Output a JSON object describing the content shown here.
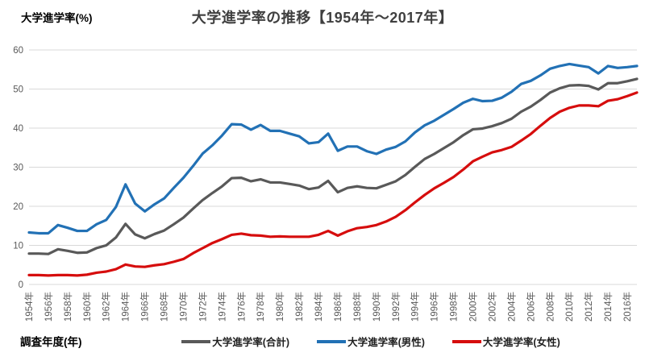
{
  "header": {
    "title": "大学進学率の推移【1954年～2017年】",
    "y_axis_title": "大学進学率(%)",
    "x_axis_title": "調査年度(年)"
  },
  "axes": {
    "y_tick_labels": [
      "0",
      "10",
      "20",
      "30",
      "40",
      "50",
      "60"
    ],
    "x_tick_labels": [
      "1954年",
      "1956年",
      "1958年",
      "1960年",
      "1962年",
      "1964年",
      "1966年",
      "1968年",
      "1970年",
      "1972年",
      "1974年",
      "1976年",
      "1978年",
      "1980年",
      "1982年",
      "1984年",
      "1986年",
      "1988年",
      "1990年",
      "1992年",
      "1994年",
      "1996年",
      "1998年",
      "2000年",
      "2002年",
      "2004年",
      "2006年",
      "2008年",
      "2010年",
      "2012年",
      "2014年",
      "2016年"
    ]
  },
  "colors": {
    "title": "#3f3f3f",
    "gridline": "#d9d9d9",
    "tick_text": "#595959",
    "series_total": "#595959",
    "series_male": "#2271b5",
    "series_female": "#d60d0d"
  },
  "chart_data": {
    "type": "line",
    "title": "大学進学率の推移【1954年～2017年】",
    "xlabel": "調査年度(年)",
    "ylabel": "大学進学率(%)",
    "xlim": [
      1954,
      2017
    ],
    "ylim": [
      0,
      60
    ],
    "y_ticks": [
      0,
      10,
      20,
      30,
      40,
      50,
      60
    ],
    "x_tick_years": [
      1954,
      1956,
      1958,
      1960,
      1962,
      1964,
      1966,
      1968,
      1970,
      1972,
      1974,
      1976,
      1978,
      1980,
      1982,
      1984,
      1986,
      1988,
      1990,
      1992,
      1994,
      1996,
      1998,
      2000,
      2002,
      2004,
      2006,
      2008,
      2010,
      2012,
      2014,
      2016
    ],
    "grid": "horizontal",
    "legend_position": "bottom",
    "x": [
      1954,
      1955,
      1956,
      1957,
      1958,
      1959,
      1960,
      1961,
      1962,
      1963,
      1964,
      1965,
      1966,
      1967,
      1968,
      1969,
      1970,
      1971,
      1972,
      1973,
      1974,
      1975,
      1976,
      1977,
      1978,
      1979,
      1980,
      1981,
      1982,
      1983,
      1984,
      1985,
      1986,
      1987,
      1988,
      1989,
      1990,
      1991,
      1992,
      1993,
      1994,
      1995,
      1996,
      1997,
      1998,
      1999,
      2000,
      2001,
      2002,
      2003,
      2004,
      2005,
      2006,
      2007,
      2008,
      2009,
      2010,
      2011,
      2012,
      2013,
      2014,
      2015,
      2016,
      2017
    ],
    "series": [
      {
        "key": "total",
        "name": "大学進学率(合計)",
        "color": "#595959",
        "values": [
          7.9,
          7.9,
          7.8,
          9.0,
          8.6,
          8.1,
          8.2,
          9.3,
          10.0,
          12.0,
          15.5,
          12.8,
          11.8,
          12.9,
          13.8,
          15.4,
          17.1,
          19.4,
          21.6,
          23.4,
          25.1,
          27.2,
          27.3,
          26.4,
          26.9,
          26.1,
          26.1,
          25.7,
          25.3,
          24.4,
          24.8,
          26.5,
          23.6,
          24.7,
          25.1,
          24.7,
          24.6,
          25.5,
          26.4,
          28.0,
          30.1,
          32.1,
          33.4,
          34.9,
          36.4,
          38.2,
          39.7,
          39.9,
          40.5,
          41.3,
          42.4,
          44.2,
          45.5,
          47.2,
          49.1,
          50.2,
          50.9,
          51.0,
          50.8,
          49.9,
          51.5,
          51.5,
          52.0,
          52.6
        ]
      },
      {
        "key": "male",
        "name": "大学進学率(男性)",
        "color": "#2271b5",
        "values": [
          13.3,
          13.1,
          13.1,
          15.2,
          14.5,
          13.7,
          13.7,
          15.4,
          16.5,
          19.8,
          25.6,
          20.7,
          18.7,
          20.5,
          22.0,
          24.7,
          27.3,
          30.3,
          33.5,
          35.6,
          38.1,
          41.0,
          40.9,
          39.6,
          40.8,
          39.3,
          39.3,
          38.6,
          37.9,
          36.1,
          36.4,
          38.6,
          34.2,
          35.3,
          35.3,
          34.1,
          33.4,
          34.5,
          35.2,
          36.6,
          38.9,
          40.7,
          41.9,
          43.4,
          44.9,
          46.5,
          47.5,
          46.9,
          47.0,
          47.8,
          49.3,
          51.3,
          52.1,
          53.5,
          55.2,
          55.9,
          56.4,
          56.0,
          55.6,
          54.0,
          55.9,
          55.4,
          55.6,
          55.9
        ]
      },
      {
        "key": "female",
        "name": "大学進学率(女性)",
        "color": "#d60d0d",
        "values": [
          2.4,
          2.4,
          2.3,
          2.4,
          2.4,
          2.3,
          2.5,
          3.0,
          3.3,
          3.9,
          5.1,
          4.6,
          4.5,
          4.9,
          5.2,
          5.8,
          6.5,
          8.0,
          9.3,
          10.6,
          11.6,
          12.7,
          13.0,
          12.6,
          12.5,
          12.2,
          12.3,
          12.2,
          12.2,
          12.2,
          12.7,
          13.7,
          12.5,
          13.6,
          14.4,
          14.7,
          15.2,
          16.1,
          17.3,
          19.0,
          21.0,
          22.9,
          24.6,
          26.0,
          27.5,
          29.4,
          31.5,
          32.7,
          33.8,
          34.4,
          35.2,
          36.8,
          38.5,
          40.6,
          42.6,
          44.2,
          45.2,
          45.8,
          45.8,
          45.6,
          47.0,
          47.4,
          48.2,
          49.1
        ]
      }
    ]
  }
}
